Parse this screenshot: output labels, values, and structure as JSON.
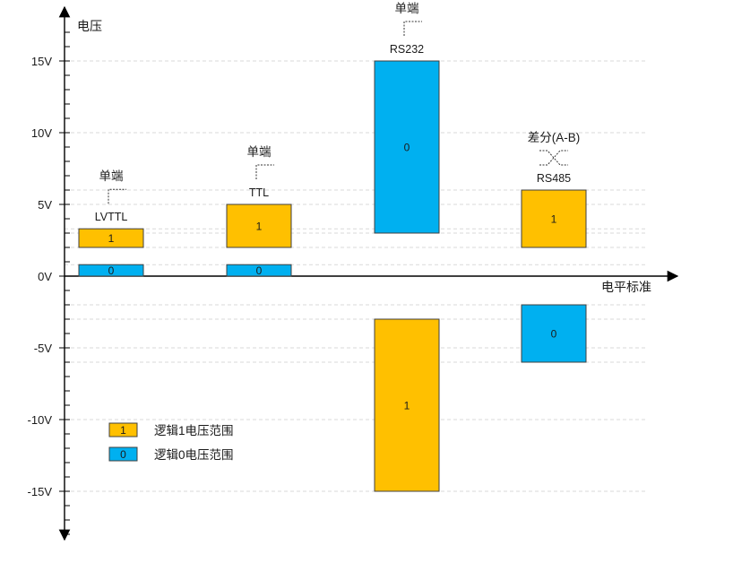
{
  "chart_data": {
    "type": "bar",
    "ylabel": "电压",
    "xlabel": "电平标准",
    "ylim": [
      -15,
      15
    ],
    "y_ticks": [
      {
        "value": 15,
        "label": "15V"
      },
      {
        "value": 10,
        "label": "10V"
      },
      {
        "value": 5,
        "label": "5V"
      },
      {
        "value": 0,
        "label": "0V"
      },
      {
        "value": -5,
        "label": "-5V"
      },
      {
        "value": -10,
        "label": "-10V"
      },
      {
        "value": -15,
        "label": "-15V"
      }
    ],
    "grid": true,
    "colors": {
      "logic1": "#ffc000",
      "logic0": "#00b0f0",
      "edge": "#404040",
      "grid": "#d9d9d9"
    },
    "categories": [
      {
        "name": "LVTTL",
        "signal_type": "单端",
        "signal_kind": "single-ended",
        "ranges": [
          {
            "logic": "1",
            "low": 2.0,
            "high": 3.3
          },
          {
            "logic": "0",
            "low": 0.0,
            "high": 0.8
          }
        ]
      },
      {
        "name": "TTL",
        "signal_type": "单端",
        "signal_kind": "single-ended",
        "ranges": [
          {
            "logic": "1",
            "low": 2.0,
            "high": 5.0
          },
          {
            "logic": "0",
            "low": 0.0,
            "high": 0.8
          }
        ]
      },
      {
        "name": "RS232",
        "signal_type": "单端",
        "signal_kind": "single-ended",
        "ranges": [
          {
            "logic": "0",
            "low": 3.0,
            "high": 15.0
          },
          {
            "logic": "1",
            "low": -15.0,
            "high": -3.0
          }
        ]
      },
      {
        "name": "RS485",
        "signal_type": "差分(A-B)",
        "signal_kind": "differential",
        "ranges": [
          {
            "logic": "1",
            "low": 2.0,
            "high": 6.0
          },
          {
            "logic": "0",
            "low": -6.0,
            "high": -2.0
          }
        ]
      }
    ],
    "legend": {
      "placement": "bottom-left",
      "entries": [
        {
          "swatch": "1",
          "label": "逻辑1电压范围",
          "color": "#ffc000"
        },
        {
          "swatch": "0",
          "label": "逻辑0电压范围",
          "color": "#00b0f0"
        }
      ]
    }
  }
}
